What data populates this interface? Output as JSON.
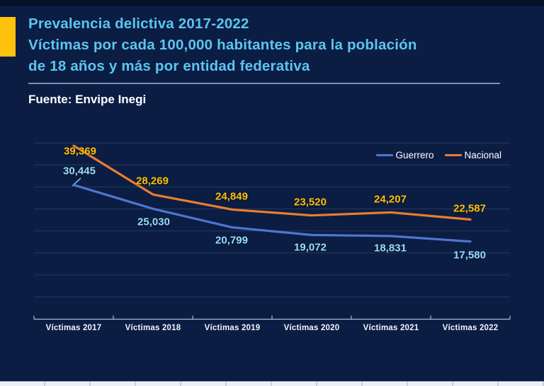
{
  "header": {
    "title_lines": [
      "Prevalencia delictiva 2017-2022",
      "Víctimas por cada 100,000 habitantes para la población",
      "de 18 años y más por entidad federativa"
    ],
    "source": "Fuente: Envipe Inegi"
  },
  "colors": {
    "background": "#0C1D44",
    "top_strip": "#061129",
    "accent_yellow": "#FFC20E",
    "title_blue": "#5BC6EE",
    "divider": "#7A92B5",
    "source_text": "#FFFFFF",
    "gridline": "rgba(130,158,205,0.20)",
    "axis_line": "rgba(205,216,234,0.85)",
    "x_labels": "#F2F5FA",
    "bottom_strip": "#EEF0F7"
  },
  "chart_data": {
    "type": "line",
    "title": "Prevalencia delictiva 2017-2022",
    "xlabel": "",
    "ylabel": "Víctimas por cada 100,000 habitantes",
    "categories": [
      "Víctimas 2017",
      "Víctimas 2018",
      "Víctimas 2019",
      "Víctimas 2020",
      "Víctimas 2021",
      "Víctimas 2022"
    ],
    "series": [
      {
        "name": "Guerrero",
        "color": "#4B77CE",
        "label_color": "#9ADCF5",
        "values": [
          30445,
          25030,
          20799,
          19072,
          18831,
          17580
        ]
      },
      {
        "name": "Nacional",
        "color": "#E97E30",
        "label_color": "#FFC000",
        "values": [
          39369,
          28269,
          24849,
          23520,
          24207,
          22587
        ]
      }
    ],
    "ylim": [
      0,
      40000
    ],
    "gridline_step": 5000,
    "grid": true,
    "y_axis_labels_visible": false,
    "data_labels_visible": true,
    "legend_position": "top-right"
  }
}
